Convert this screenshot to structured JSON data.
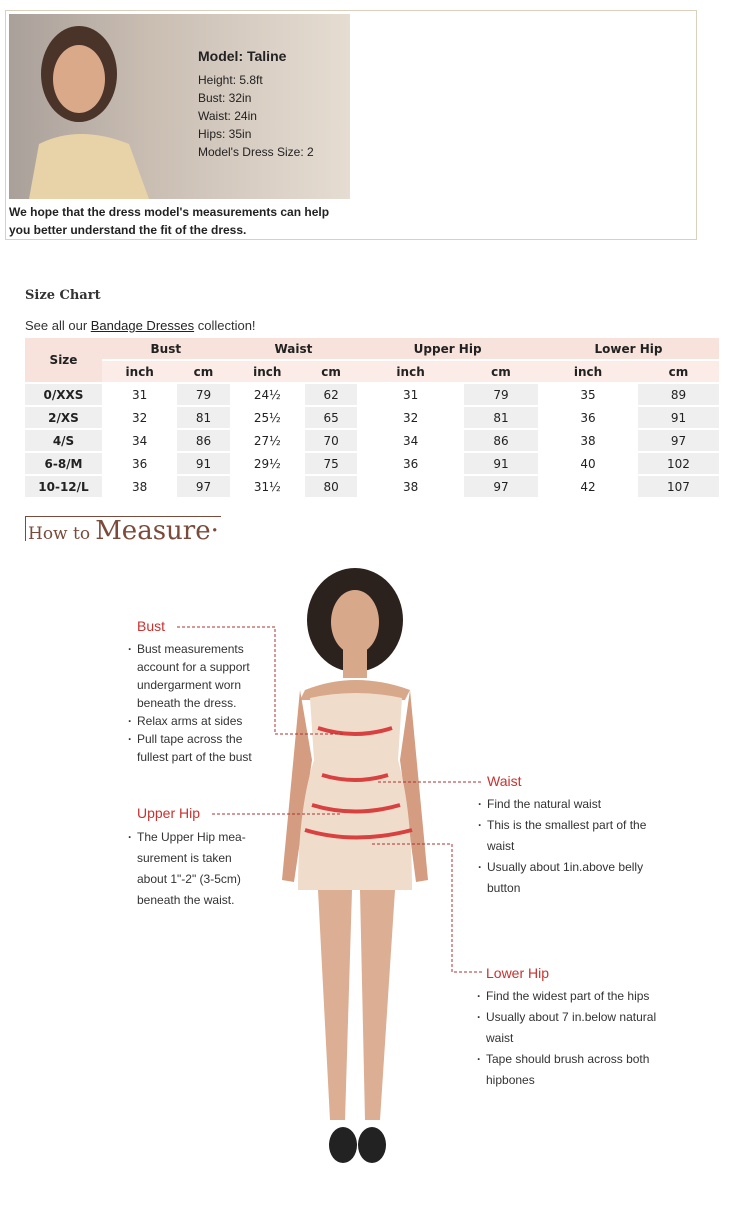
{
  "model": {
    "name": "Model: Taline",
    "height": "Height: 5.8ft",
    "bust": "Bust: 32in",
    "waist": "Waist: 24in",
    "hips": "Hips: 35in",
    "dress_size": "Model's Dress Size: 2",
    "note": "We hope that the dress model's measurements can help you better understand the fit of the dress."
  },
  "size_chart": {
    "title": "Size Chart",
    "see_all_prefix": "See all our ",
    "link": "Bandage Dresses",
    "see_all_suffix": " collection!",
    "headers": {
      "size": "Size",
      "groups": [
        "Bust",
        "Waist",
        "Upper Hip",
        "Lower Hip"
      ],
      "units": [
        "inch",
        "cm",
        "inch",
        "cm",
        "inch",
        "cm",
        "inch",
        "cm"
      ]
    },
    "rows": [
      [
        "0/XXS",
        "31",
        "79",
        "24½",
        "62",
        "31",
        "79",
        "35",
        "89"
      ],
      [
        "2/XS",
        "32",
        "81",
        "25½",
        "65",
        "32",
        "81",
        "36",
        "91"
      ],
      [
        "4/S",
        "34",
        "86",
        "27½",
        "70",
        "34",
        "86",
        "38",
        "97"
      ],
      [
        "6-8/M",
        "36",
        "91",
        "29½",
        "75",
        "36",
        "91",
        "40",
        "102"
      ],
      [
        "10-12/L",
        "38",
        "97",
        "31½",
        "80",
        "38",
        "97",
        "42",
        "107"
      ]
    ]
  },
  "how_to": {
    "small": "How to",
    "big": "Measure"
  },
  "accent": "#c8322f",
  "bust": {
    "label": "Bust",
    "items": [
      "Bust measurements account for a support undergarment worn beneath the dress.",
      "Relax arms at sides",
      "Pull tape across the fullest part of the bust"
    ]
  },
  "upper_hip": {
    "label": "Upper Hip",
    "items": [
      "The Upper Hip mea- surement is taken about 1\"-2\" (3-5cm) beneath the waist."
    ]
  },
  "waist": {
    "label": "Waist",
    "items": [
      "Find the natural waist",
      "This is the smallest part of the waist",
      "Usually about 1in.above belly button"
    ]
  },
  "lower_hip": {
    "label": "Lower Hip",
    "items": [
      "Find the widest part of the hips",
      "Usually about 7 in.below natural waist",
      "Tape should brush across both hipbones"
    ]
  }
}
